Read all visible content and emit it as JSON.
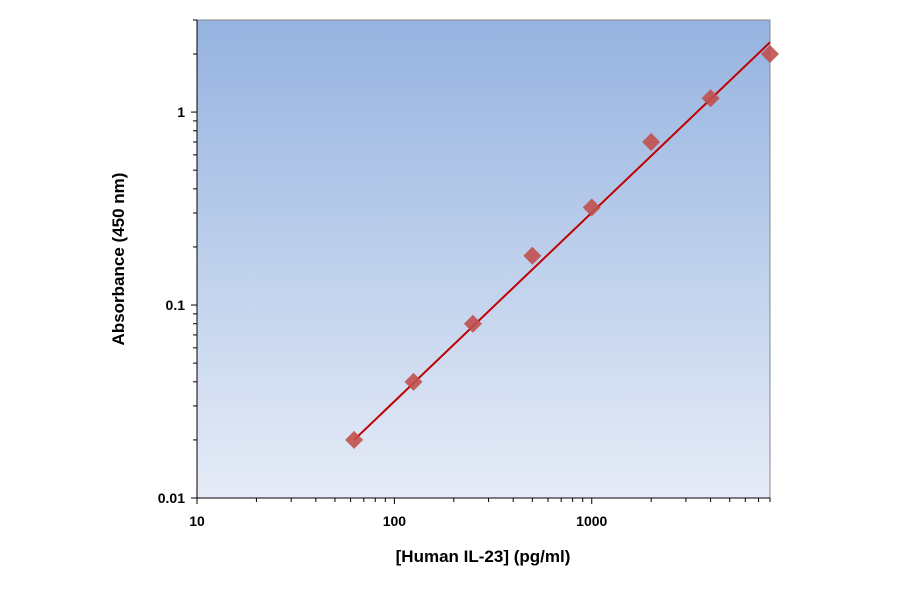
{
  "chart_data": {
    "type": "scatter",
    "title": "",
    "xlabel": "[Human IL-23] (pg/ml)",
    "ylabel": "Absorbance (450 nm)",
    "x_scale": "log",
    "y_scale": "log",
    "xlim": [
      10,
      8000
    ],
    "ylim": [
      0.01,
      3
    ],
    "x_ticks": [
      {
        "value": 10,
        "label": "10"
      },
      {
        "value": 100,
        "label": "100"
      },
      {
        "value": 1000,
        "label": "1000"
      }
    ],
    "y_ticks": [
      {
        "value": 0.01,
        "label": "0.01"
      },
      {
        "value": 0.1,
        "label": "0.1"
      },
      {
        "value": 1,
        "label": "1"
      }
    ],
    "grid": false,
    "legend": "none",
    "series": [
      {
        "marker": "diamond",
        "color": "#c0504d",
        "points": [
          {
            "x": 62.5,
            "y": 0.02
          },
          {
            "x": 125,
            "y": 0.04
          },
          {
            "x": 250,
            "y": 0.08
          },
          {
            "x": 500,
            "y": 0.18
          },
          {
            "x": 1000,
            "y": 0.32
          },
          {
            "x": 2000,
            "y": 0.7
          },
          {
            "x": 4000,
            "y": 1.18
          },
          {
            "x": 8000,
            "y": 2.0
          }
        ]
      }
    ],
    "fit_line": {
      "color": "#c00000",
      "x": [
        62.5,
        8000
      ],
      "y": [
        0.02,
        2.3
      ]
    },
    "plot_background": {
      "top": "#95b3e0",
      "bottom": "#e6ecf7"
    }
  }
}
